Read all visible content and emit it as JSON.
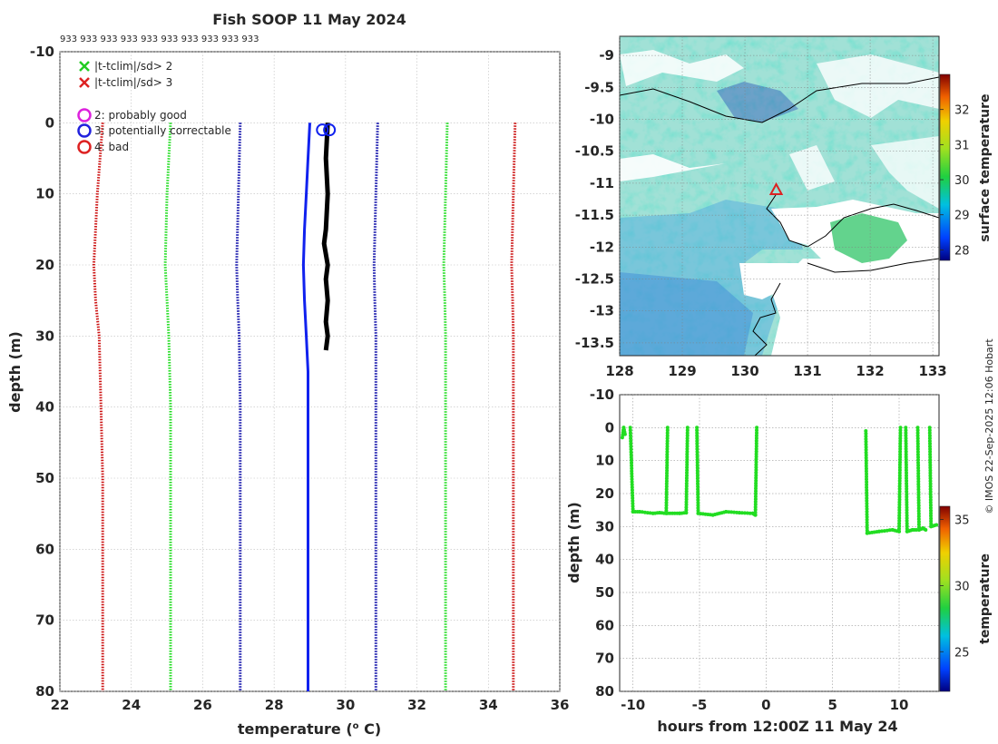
{
  "chart_data": [
    {
      "type": "line",
      "title": "Fish SOOP 11 May 2024",
      "subtitle_text": "933 933 933 933 933 933 933 933 933 933",
      "xlabel": "temperature (",
      "xlabel_sup": "o",
      "xlabel_end": " C)",
      "ylabel": "depth (m)",
      "xlim": [
        22,
        36
      ],
      "ylim": [
        -10,
        80
      ],
      "xticks": [
        22,
        24,
        26,
        28,
        30,
        32,
        34,
        36
      ],
      "yticks": [
        -10,
        0,
        10,
        20,
        30,
        40,
        50,
        60,
        70,
        80
      ],
      "grid": true,
      "legend": [
        {
          "marker": "x",
          "color": "#22cc22",
          "label": "|t-tclim|/sd> 2"
        },
        {
          "marker": "x",
          "color": "#dd2222",
          "label": "|t-tclim|/sd> 3"
        },
        {
          "marker": "o",
          "color": "#dd22dd",
          "label": "2: probably good"
        },
        {
          "marker": "o",
          "color": "#2222dd",
          "label": "3: potentially correctable"
        },
        {
          "marker": "o",
          "color": "#dd2222",
          "label": "4: bad"
        }
      ],
      "series": [
        {
          "name": "clim -3sd",
          "color": "#cc1111",
          "style": "dotted",
          "depth": [
            0,
            10,
            20,
            25,
            30,
            40,
            50,
            60,
            70,
            80
          ],
          "temp": [
            23.2,
            23.05,
            22.95,
            23.0,
            23.1,
            23.15,
            23.2,
            23.2,
            23.2,
            23.2
          ]
        },
        {
          "name": "clim -2sd",
          "color": "#22dd22",
          "style": "dotted",
          "depth": [
            0,
            10,
            20,
            25,
            30,
            40,
            50,
            60,
            70,
            80
          ],
          "temp": [
            25.1,
            25.0,
            24.95,
            25.0,
            25.05,
            25.1,
            25.1,
            25.1,
            25.1,
            25.1
          ]
        },
        {
          "name": "clim -1sd",
          "color": "#1111aa",
          "style": "dotted",
          "depth": [
            0,
            10,
            20,
            25,
            30,
            40,
            50,
            60,
            70,
            80
          ],
          "temp": [
            27.05,
            27.0,
            26.95,
            26.98,
            27.02,
            27.05,
            27.05,
            27.05,
            27.05,
            27.05
          ]
        },
        {
          "name": "clim +1sd",
          "color": "#1111aa",
          "style": "dotted",
          "depth": [
            0,
            10,
            20,
            25,
            30,
            40,
            50,
            60,
            70,
            80
          ],
          "temp": [
            30.9,
            30.85,
            30.8,
            30.82,
            30.85,
            30.85,
            30.85,
            30.85,
            30.85,
            30.85
          ]
        },
        {
          "name": "clim +2sd",
          "color": "#22dd22",
          "style": "dotted",
          "depth": [
            0,
            10,
            20,
            25,
            30,
            40,
            50,
            60,
            70,
            80
          ],
          "temp": [
            32.85,
            32.8,
            32.75,
            32.78,
            32.8,
            32.8,
            32.8,
            32.8,
            32.8,
            32.8
          ]
        },
        {
          "name": "clim +3sd",
          "color": "#cc1111",
          "style": "dotted",
          "depth": [
            0,
            10,
            20,
            25,
            30,
            40,
            50,
            60,
            70,
            80
          ],
          "temp": [
            34.75,
            34.7,
            34.65,
            34.68,
            34.7,
            34.7,
            34.7,
            34.7,
            34.7,
            34.7
          ]
        },
        {
          "name": "mean",
          "color": "#1122ee",
          "style": "solid",
          "depth": [
            0,
            5,
            10,
            15,
            20,
            25,
            30,
            35,
            40,
            50,
            60,
            70,
            80
          ],
          "temp": [
            29.0,
            28.95,
            28.9,
            28.85,
            28.82,
            28.85,
            28.9,
            28.95,
            28.95,
            28.95,
            28.95,
            28.95,
            28.95
          ]
        },
        {
          "name": "observed",
          "color": "#000000",
          "style": "solid",
          "depth": [
            0,
            5,
            10,
            15,
            17,
            20,
            22,
            25,
            28,
            30,
            32
          ],
          "temp": [
            29.5,
            29.45,
            29.5,
            29.45,
            29.4,
            29.5,
            29.45,
            29.5,
            29.45,
            29.5,
            29.45
          ]
        }
      ],
      "flagged_points": [
        {
          "temp": 29.35,
          "depth": 1,
          "flag": "3"
        },
        {
          "temp": 29.55,
          "depth": 1,
          "flag": "3"
        }
      ]
    },
    {
      "type": "heatmap",
      "colorbar_label": "surface temperature",
      "xlim": [
        128,
        133.1
      ],
      "ylim": [
        -13.7,
        -8.7
      ],
      "xticks": [
        128,
        129,
        130,
        131,
        132,
        133
      ],
      "yticks": [
        -9,
        -9.5,
        -10,
        -10.5,
        -11,
        -11.5,
        -12,
        -12.5,
        -13,
        -13.5
      ],
      "colorbar_range": [
        27.7,
        33
      ],
      "colorbar_ticks": [
        28,
        29,
        30,
        31,
        32
      ],
      "marker": {
        "lon": 130.5,
        "lat": -11.1,
        "symbol": "triangle",
        "color": "#dd2222"
      },
      "annotation": "© IMOS 22-Sep-2025 12:06 Hobart"
    },
    {
      "type": "scatter",
      "xlabel": "hours from 12:00Z 11 May 24",
      "ylabel": "depth (m)",
      "colorbar_label": "temperature",
      "xlim": [
        -11,
        13
      ],
      "ylim": [
        -10,
        80
      ],
      "xticks": [
        -10,
        -5,
        0,
        5,
        10
      ],
      "yticks": [
        -10,
        0,
        10,
        20,
        30,
        40,
        50,
        60,
        70,
        80
      ],
      "colorbar_range": [
        22,
        36
      ],
      "colorbar_ticks": [
        25,
        30,
        35
      ],
      "color": "#22dd22",
      "segments": [
        {
          "hours": [
            -10.8,
            -10.7,
            -10.6
          ],
          "depth": [
            3,
            0,
            2
          ]
        },
        {
          "hours": [
            -10.2,
            -10.0,
            -9.5,
            -8.5,
            -8.0,
            -7.5
          ],
          "depth": [
            0,
            25.5,
            25.5,
            26,
            25.8,
            26
          ]
        },
        {
          "hours": [
            -7.5,
            -7.4
          ],
          "depth": [
            26,
            0
          ]
        },
        {
          "hours": [
            -7.4,
            -6.5,
            -6.0
          ],
          "depth": [
            26,
            26,
            25.8
          ]
        },
        {
          "hours": [
            -6.0,
            -5.9
          ],
          "depth": [
            25.8,
            0
          ]
        },
        {
          "hours": [
            -5.2,
            -5.1,
            -4.0,
            -3.0,
            -2.0,
            -1.0,
            -0.8
          ],
          "depth": [
            0,
            26,
            26.5,
            25.5,
            25.8,
            26,
            26.5
          ]
        },
        {
          "hours": [
            -0.8,
            -0.7
          ],
          "depth": [
            26.5,
            0
          ]
        },
        {
          "hours": [
            7.5,
            7.6,
            8.5,
            9.5,
            10.0
          ],
          "depth": [
            1,
            32,
            31.5,
            31,
            31.5
          ]
        },
        {
          "hours": [
            10.0,
            10.1
          ],
          "depth": [
            31.5,
            0
          ]
        },
        {
          "hours": [
            10.5,
            10.6,
            11.0,
            11.3
          ],
          "depth": [
            0,
            31.5,
            31,
            31
          ]
        },
        {
          "hours": [
            11.4,
            11.5,
            11.8,
            12.0
          ],
          "depth": [
            0,
            31,
            30.5,
            31
          ]
        },
        {
          "hours": [
            12.3,
            12.4,
            12.8
          ],
          "depth": [
            0,
            30,
            29.5
          ]
        }
      ]
    }
  ]
}
